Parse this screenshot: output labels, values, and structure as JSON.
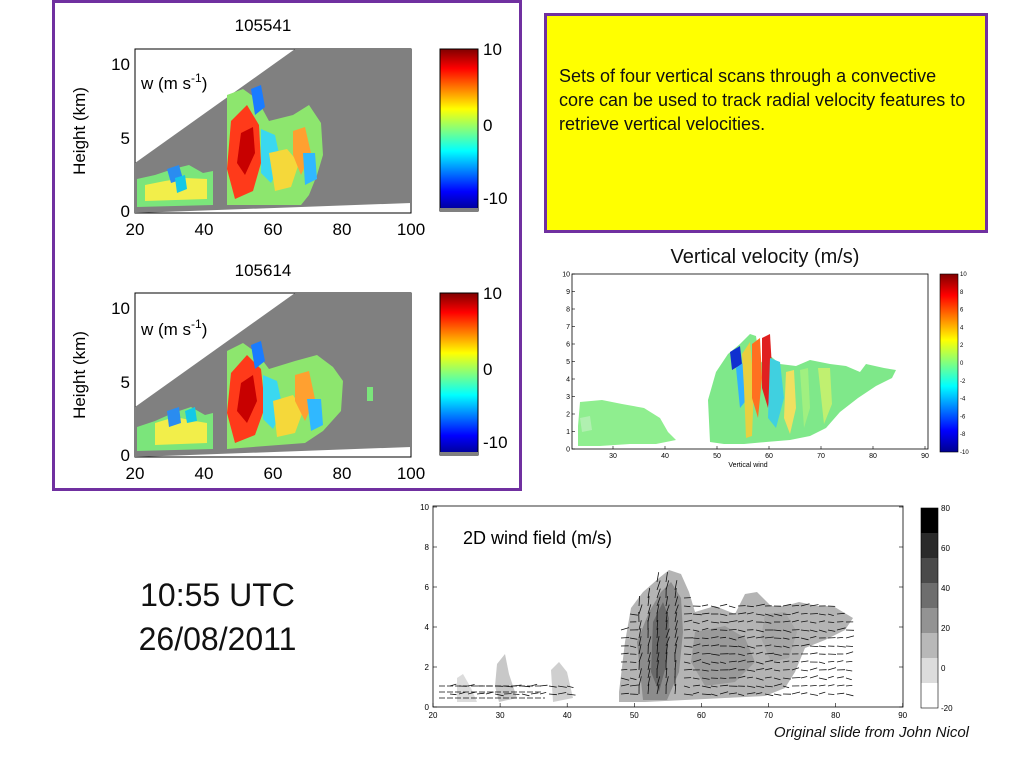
{
  "top_panel": {
    "title": "105541",
    "label": "w (m s",
    "label_sup": "-1",
    "label_close": ")"
  },
  "bottom_panel": {
    "title": "105614",
    "label": "w (m s",
    "label_sup": "-1",
    "label_close": ")"
  },
  "radar_axes": {
    "ylabel": "Height (km)",
    "x_ticks": [
      "20",
      "40",
      "60",
      "80",
      "100"
    ],
    "y_ticks": [
      "0",
      "5",
      "10"
    ],
    "colorbar_ticks": [
      "10",
      "0",
      "-10"
    ]
  },
  "note": "Sets of four vertical scans through a convective core can be used to track radial velocity features to retrieve vertical velocities.",
  "vertical_velocity": {
    "title": "Vertical velocity (m/s)",
    "xlabel": "Vertical wind",
    "x_ticks": [
      "30",
      "40",
      "50",
      "60",
      "70",
      "80",
      "90"
    ],
    "y_ticks": [
      "0",
      "1",
      "2",
      "3",
      "4",
      "5",
      "6",
      "7",
      "8",
      "9",
      "10"
    ],
    "colorbar_ticks": [
      "10",
      "8",
      "6",
      "4",
      "2",
      "0",
      "-2",
      "-4",
      "-6",
      "-8",
      "-10"
    ]
  },
  "wind_field": {
    "title": "2D wind field (m/s)",
    "x_ticks": [
      "20",
      "30",
      "40",
      "50",
      "60",
      "70",
      "80",
      "90"
    ],
    "y_ticks": [
      "0",
      "2",
      "4",
      "6",
      "8",
      "10"
    ],
    "colorbar_ticks": [
      "80",
      "60",
      "40",
      "20",
      "0",
      "-20"
    ]
  },
  "timestamp": {
    "time": "10:55 UTC",
    "date": "26/08/2011"
  },
  "credit": "Original slide from John Nicol",
  "colors": {
    "border": "#7030a0",
    "note_bg": "#ffff00",
    "radar_gray": "#808080"
  }
}
